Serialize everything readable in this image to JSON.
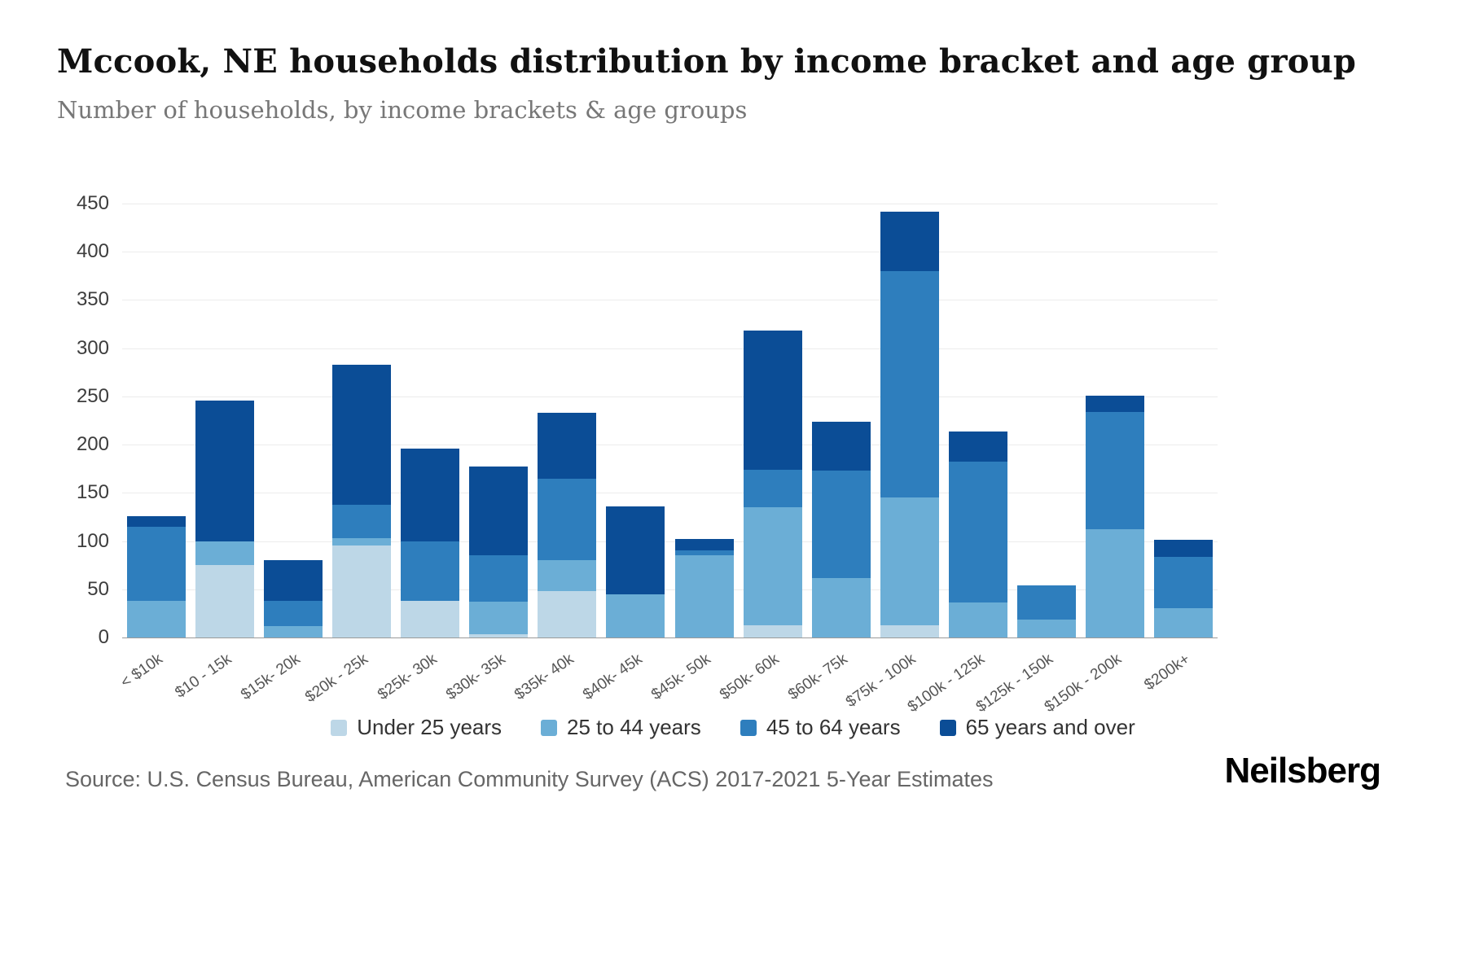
{
  "header": {
    "title": "Mccook, NE households distribution by income bracket and age group",
    "subtitle": "Number of households, by income brackets & age groups"
  },
  "chart_data": {
    "type": "bar",
    "variant": "stacked-vertical",
    "title": "Mccook, NE households distribution by income bracket and age group",
    "subtitle": "Number of households, by income brackets & age groups",
    "xlabel": "",
    "ylabel": "",
    "ylim": [
      0,
      450
    ],
    "yticks": [
      0,
      50,
      100,
      150,
      200,
      250,
      300,
      350,
      400,
      450
    ],
    "grid": true,
    "legend_position": "bottom",
    "categories": [
      "< $10k",
      "$10 - 15k",
      "$15k- 20k",
      "$20k - 25k",
      "$25k- 30k",
      "$30k- 35k",
      "$35k- 40k",
      "$40k- 45k",
      "$45k- 50k",
      "$50k- 60k",
      "$60k- 75k",
      "$75k - 100k",
      "$100k - 125k",
      "$125k - 150k",
      "$150k - 200k",
      "$200k+"
    ],
    "series": [
      {
        "name": "Under 25 years",
        "color": "#bdd7e7",
        "values": [
          0,
          75,
          0,
          95,
          38,
          3,
          48,
          0,
          0,
          13,
          0,
          13,
          0,
          0,
          0,
          0
        ]
      },
      {
        "name": "25 to 44 years",
        "color": "#6baed6",
        "values": [
          38,
          25,
          12,
          8,
          0,
          34,
          32,
          45,
          85,
          122,
          62,
          132,
          36,
          19,
          112,
          30
        ]
      },
      {
        "name": "45 to 64 years",
        "color": "#2e7ebd",
        "values": [
          77,
          0,
          26,
          35,
          62,
          48,
          85,
          0,
          5,
          39,
          111,
          235,
          146,
          35,
          122,
          54
        ]
      },
      {
        "name": "65 years and over",
        "color": "#0b4d96",
        "values": [
          11,
          146,
          42,
          145,
          96,
          92,
          68,
          91,
          12,
          144,
          51,
          62,
          32,
          0,
          17,
          17
        ]
      }
    ]
  },
  "footer": {
    "source": "Source: U.S. Census Bureau, American Community Survey (ACS) 2017-2021 5-Year Estimates",
    "brand": "Neilsberg"
  }
}
